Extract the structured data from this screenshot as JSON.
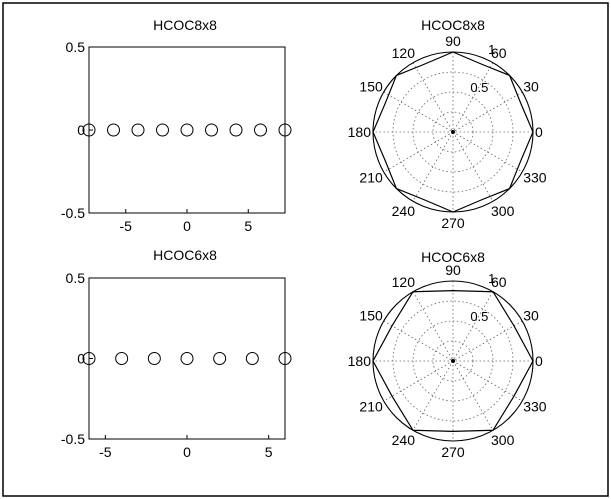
{
  "chart_data": [
    {
      "type": "scatter",
      "title": "HCOC8x8",
      "xlabel": "",
      "ylabel": "",
      "xlim": [
        -8,
        8
      ],
      "ylim": [
        -0.5,
        0.5
      ],
      "xticks": [
        "-5",
        "0",
        "5"
      ],
      "yticks": [
        "0.5",
        "0",
        "-0.5"
      ],
      "marker": "open-circle",
      "x": [
        -8,
        -6,
        -4,
        -2,
        0,
        2,
        4,
        6,
        8
      ],
      "y": [
        0,
        0,
        0,
        0,
        0,
        0,
        0,
        0,
        0
      ]
    },
    {
      "type": "polar",
      "title": "HCOC8x8",
      "rlim": [
        0,
        1
      ],
      "rticks": [
        "0.5",
        "1"
      ],
      "angle_ticks": [
        "90",
        "60",
        "30",
        "0",
        "330",
        "300",
        "270",
        "240",
        "210",
        "180",
        "150",
        "120"
      ],
      "angles_deg": [
        0,
        22.5,
        45,
        67.5,
        90,
        112.5,
        135,
        157.5,
        180,
        202.5,
        225,
        247.5,
        270,
        292.5,
        315,
        337.5
      ],
      "radii": [
        1.0,
        0.92,
        1.0,
        0.92,
        1.0,
        0.92,
        1.0,
        0.92,
        1.0,
        0.92,
        1.0,
        0.92,
        1.0,
        0.92,
        1.0,
        0.92
      ]
    },
    {
      "type": "scatter",
      "title": "HCOC6x8",
      "xlabel": "",
      "ylabel": "",
      "xlim": [
        -6,
        6
      ],
      "ylim": [
        -0.5,
        0.5
      ],
      "xticks": [
        "-5",
        "0",
        "5"
      ],
      "yticks": [
        "0.5",
        "0",
        "-0.5"
      ],
      "marker": "open-circle",
      "x": [
        -6,
        -4,
        -2,
        0,
        2,
        4,
        6
      ],
      "y": [
        0,
        0,
        0,
        0,
        0,
        0,
        0
      ]
    },
    {
      "type": "polar",
      "title": "HCOC6x8",
      "rlim": [
        0,
        1
      ],
      "rticks": [
        "0.5",
        "1"
      ],
      "angle_ticks": [
        "90",
        "60",
        "30",
        "0",
        "330",
        "300",
        "270",
        "240",
        "210",
        "180",
        "150",
        "120"
      ],
      "angles_deg": [
        0,
        30,
        60,
        90,
        120,
        150,
        180,
        210,
        240,
        270,
        300,
        330
      ],
      "radii": [
        1.0,
        0.88,
        1.0,
        0.88,
        1.0,
        0.88,
        1.0,
        0.88,
        1.0,
        0.88,
        1.0,
        0.88
      ]
    }
  ]
}
